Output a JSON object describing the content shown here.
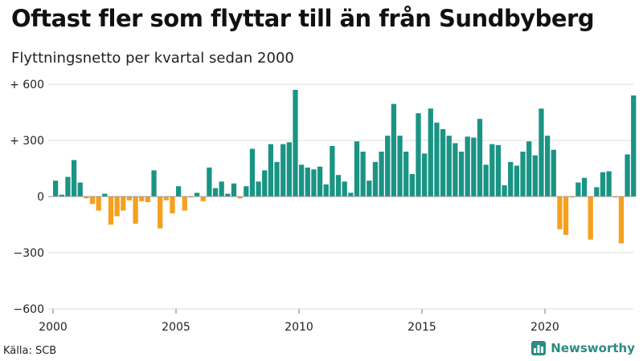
{
  "title": "Oftast fler som flyttar till än från Sundbyberg",
  "subtitle": "Flyttningsnetto per kvartal sedan 2000",
  "source": "Källa: SCB",
  "brand": {
    "name": "Newsworthy",
    "icon": "bar-chart-icon"
  },
  "colors": {
    "positive": "#1a9484",
    "negative": "#f5a01e",
    "grid": "#dddddd",
    "zero": "#9a9a9a"
  },
  "chart_data": {
    "type": "bar",
    "x_start_year": 2000,
    "quarters_per_year": 4,
    "x_ticks": [
      "2000",
      "2005",
      "2010",
      "2015",
      "2020"
    ],
    "y_ticks": [
      "+ 600",
      "+ 300",
      "0",
      "−300",
      "−600"
    ],
    "ylim": [
      -600,
      600
    ],
    "values": [
      85,
      10,
      105,
      195,
      75,
      -10,
      -40,
      -75,
      15,
      -150,
      -105,
      -75,
      -20,
      -145,
      -25,
      -30,
      140,
      -170,
      -20,
      -90,
      55,
      -75,
      -5,
      20,
      -25,
      155,
      45,
      80,
      15,
      70,
      -10,
      55,
      255,
      80,
      140,
      280,
      185,
      280,
      290,
      570,
      170,
      155,
      145,
      160,
      65,
      270,
      115,
      80,
      20,
      295,
      240,
      85,
      185,
      240,
      325,
      495,
      325,
      240,
      120,
      445,
      230,
      470,
      395,
      360,
      325,
      285,
      240,
      320,
      315,
      415,
      170,
      280,
      275,
      60,
      185,
      165,
      240,
      295,
      220,
      470,
      325,
      250,
      -175,
      -205,
      -5,
      75,
      100,
      -230,
      50,
      130,
      135,
      -5,
      -250,
      225,
      540
    ]
  }
}
